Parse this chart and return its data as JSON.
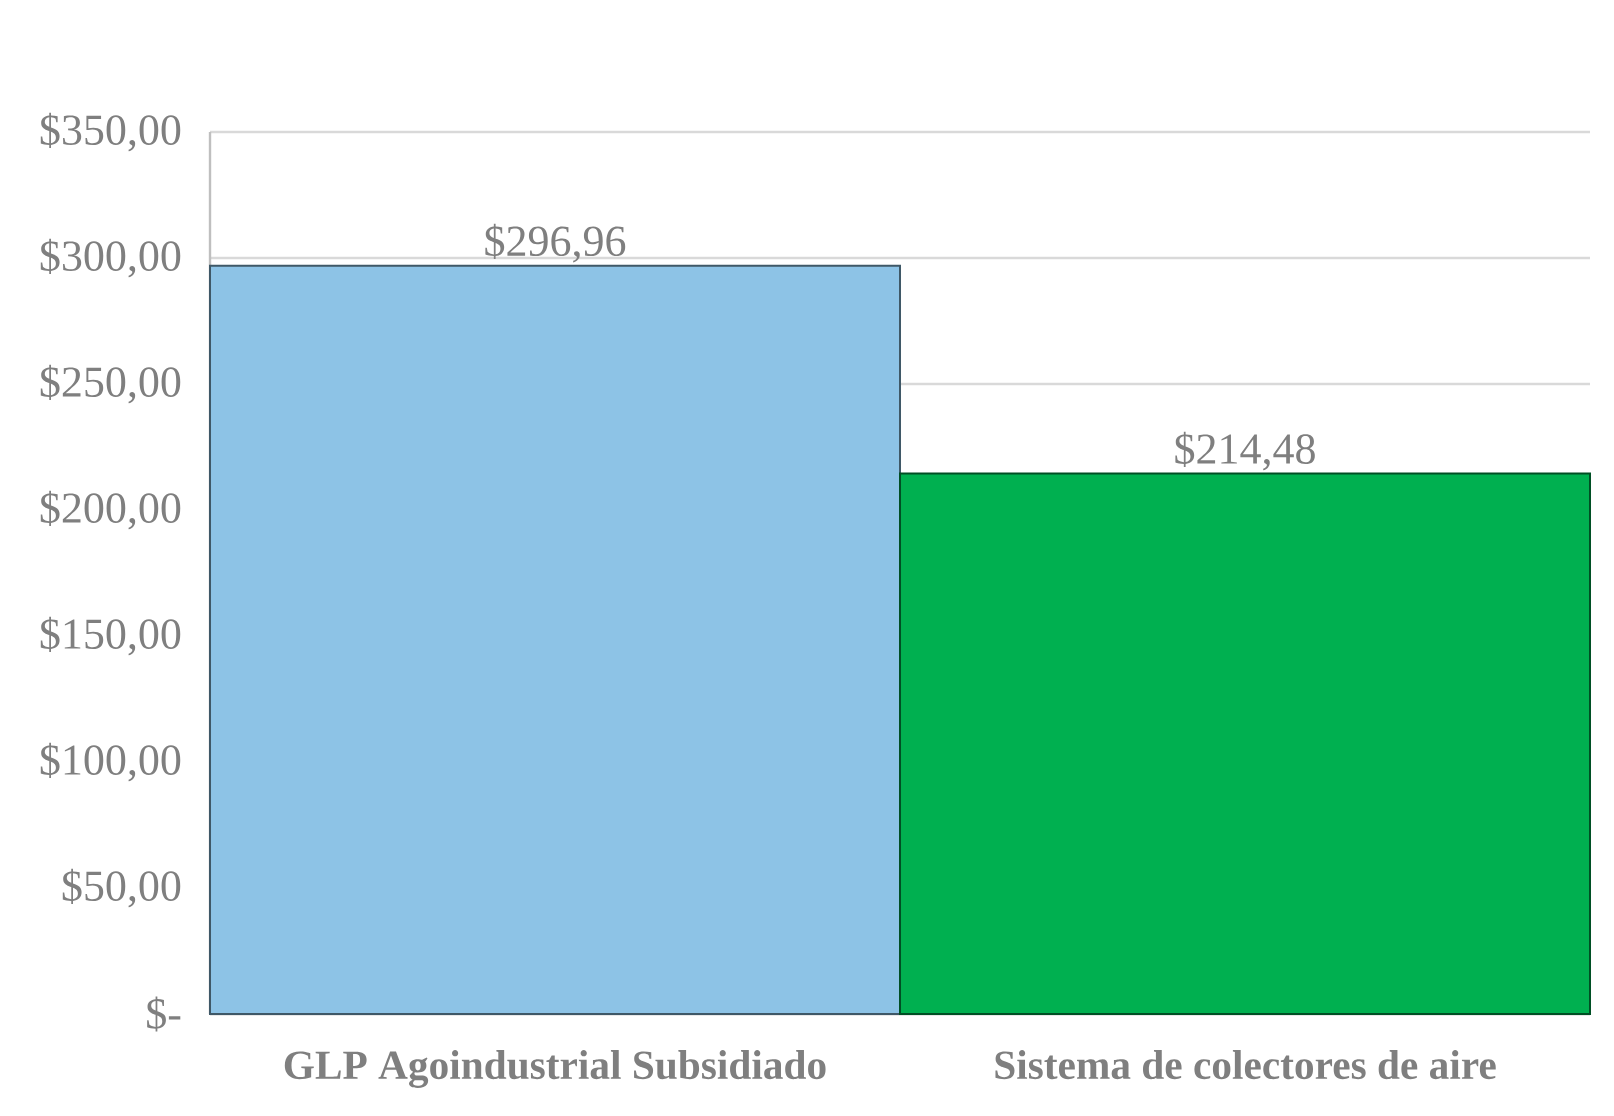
{
  "chart_data": {
    "type": "bar",
    "categories": [
      "GLP Agoindustrial Subsidiado",
      "Sistema de colectores de aire"
    ],
    "values": [
      296.96,
      214.48
    ],
    "colors": [
      "#8dc3e6",
      "#00b050"
    ],
    "value_labels": [
      "$296,96",
      "$214,48"
    ],
    "ylim": [
      0,
      350
    ],
    "yticks": [
      {
        "value": 0,
        "label": "$-"
      },
      {
        "value": 50,
        "label": "$50,00"
      },
      {
        "value": 100,
        "label": "$100,00"
      },
      {
        "value": 150,
        "label": "$150,00"
      },
      {
        "value": 200,
        "label": "$200,00"
      },
      {
        "value": 250,
        "label": "$250,00"
      },
      {
        "value": 300,
        "label": "$300,00"
      },
      {
        "value": 350,
        "label": "$350,00"
      }
    ],
    "grid": "y"
  }
}
